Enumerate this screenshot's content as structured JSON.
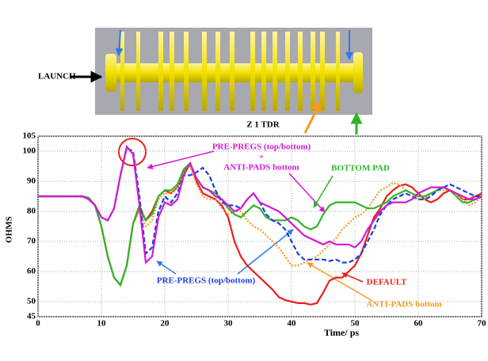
{
  "figure": {
    "launch_label": "LAUNCH",
    "caption": "Z 1 TDR"
  },
  "chart_data": {
    "type": "line",
    "x_label": "Time/ ps",
    "y_label": "OHMS",
    "x": [
      0,
      1,
      2,
      3,
      4,
      5,
      6,
      7,
      8,
      9,
      10,
      11,
      12,
      13,
      14,
      15,
      16,
      17,
      18,
      19,
      20,
      21,
      22,
      23,
      24,
      25,
      26,
      27,
      28,
      29,
      30,
      31,
      32,
      33,
      34,
      35,
      36,
      37,
      38,
      39,
      40,
      41,
      42,
      43,
      44,
      45,
      46,
      47,
      48,
      49,
      50,
      51,
      52,
      53,
      54,
      55,
      56,
      57,
      58,
      59,
      60,
      61,
      62,
      63,
      64,
      65,
      66,
      67,
      68,
      69,
      70
    ],
    "xlim": [
      0,
      70
    ],
    "xticks": [
      0,
      10,
      20,
      30,
      40,
      50,
      60,
      70
    ],
    "ylim": [
      45,
      105
    ],
    "yticks": [
      45,
      50,
      60,
      70,
      80,
      90,
      100,
      105
    ],
    "grid": true,
    "series": [
      {
        "name": "DEFAULT",
        "color": "#e8201a",
        "dash": "solid",
        "values": [
          85,
          85,
          85,
          85,
          85,
          85,
          85,
          85,
          84.5,
          82,
          75,
          65,
          58,
          55.5,
          62,
          76,
          81,
          77,
          80,
          85,
          87,
          86,
          88,
          93,
          96,
          90,
          86,
          85,
          84,
          82,
          78,
          70,
          65,
          62,
          60,
          58,
          56,
          54,
          51.5,
          50.5,
          50,
          49.5,
          49.5,
          49,
          49.5,
          53,
          57,
          58,
          58,
          60,
          62,
          66,
          72,
          78,
          81,
          85,
          87,
          88.5,
          89,
          88,
          86,
          84,
          83,
          84,
          86,
          87,
          86,
          84,
          84,
          85,
          86
        ]
      },
      {
        "name": "ANTI-PADS bottom",
        "color": "#f39a1e",
        "dash": "dotted",
        "values": [
          85,
          85,
          85,
          85,
          85,
          85,
          85,
          85,
          84.5,
          82,
          75,
          65,
          58,
          55.5,
          62,
          76,
          80,
          75,
          77,
          84,
          86,
          86,
          88,
          93,
          95,
          89,
          85,
          84,
          84,
          81,
          79,
          80,
          80,
          77,
          75,
          74,
          72,
          70,
          68,
          65,
          62,
          62,
          63,
          64,
          65,
          67,
          69,
          71,
          74,
          76,
          78,
          79,
          81,
          84,
          87,
          88,
          89.5,
          89,
          87,
          86,
          84,
          84,
          86,
          87,
          87,
          87,
          86,
          84,
          82,
          83,
          85
        ]
      },
      {
        "name": "BOTTOM PAD",
        "color": "#2fb52a",
        "dash": "solid",
        "values": [
          85,
          85,
          85,
          85,
          85,
          85,
          85,
          85,
          84.5,
          82,
          75,
          65,
          58,
          55.5,
          62,
          76,
          82,
          77,
          79,
          85,
          87,
          87,
          89,
          94,
          96,
          91,
          88,
          87,
          86,
          84,
          81,
          79,
          78,
          80,
          82,
          81,
          78,
          77,
          77,
          77,
          78,
          77,
          75,
          74,
          75,
          79,
          82,
          83,
          83,
          83,
          83,
          82,
          81,
          81,
          82,
          83,
          85,
          86,
          87,
          86,
          85,
          85,
          86,
          87,
          88,
          87,
          85,
          83,
          83,
          84,
          85
        ]
      },
      {
        "name": "PRE-PREGS (top/bottom)",
        "color": "#1b3fe0",
        "dash": "dashed",
        "values": [
          85,
          85,
          85,
          85,
          85,
          85,
          85,
          85,
          84,
          82,
          78,
          77,
          81,
          92,
          101,
          100,
          85,
          66,
          68,
          80,
          85,
          83,
          86,
          92,
          92,
          93,
          94.5,
          92,
          87,
          83,
          82,
          82,
          81,
          84,
          86,
          83,
          79,
          77,
          76,
          74,
          70,
          66,
          64,
          64,
          64,
          64,
          63.5,
          64,
          63,
          63,
          64,
          66,
          70,
          74,
          79,
          82,
          84,
          85,
          86,
          85,
          84,
          84,
          85,
          87,
          88,
          89,
          88,
          87,
          86,
          85,
          85
        ]
      },
      {
        "name_lines": [
          "PRE-PREGS (top/bottom)",
          "+",
          "ANTI-PADS bottom"
        ],
        "color": "#d21ad2",
        "dash": "solid",
        "values": [
          85,
          85,
          85,
          85,
          85,
          85,
          85,
          85,
          84,
          82,
          78,
          77,
          81,
          92,
          101.5,
          99,
          82,
          63,
          65,
          78,
          83,
          82,
          84,
          92,
          96,
          91,
          88,
          87,
          85,
          84,
          82,
          80,
          81,
          84,
          86,
          83,
          82,
          81,
          80,
          78,
          76,
          74,
          72,
          71,
          70,
          69,
          70,
          69,
          69,
          69,
          68,
          70,
          74,
          77,
          80,
          82,
          83,
          83,
          83,
          84,
          86,
          87,
          88,
          88,
          88,
          87,
          86,
          85,
          84,
          84,
          85
        ]
      }
    ]
  }
}
